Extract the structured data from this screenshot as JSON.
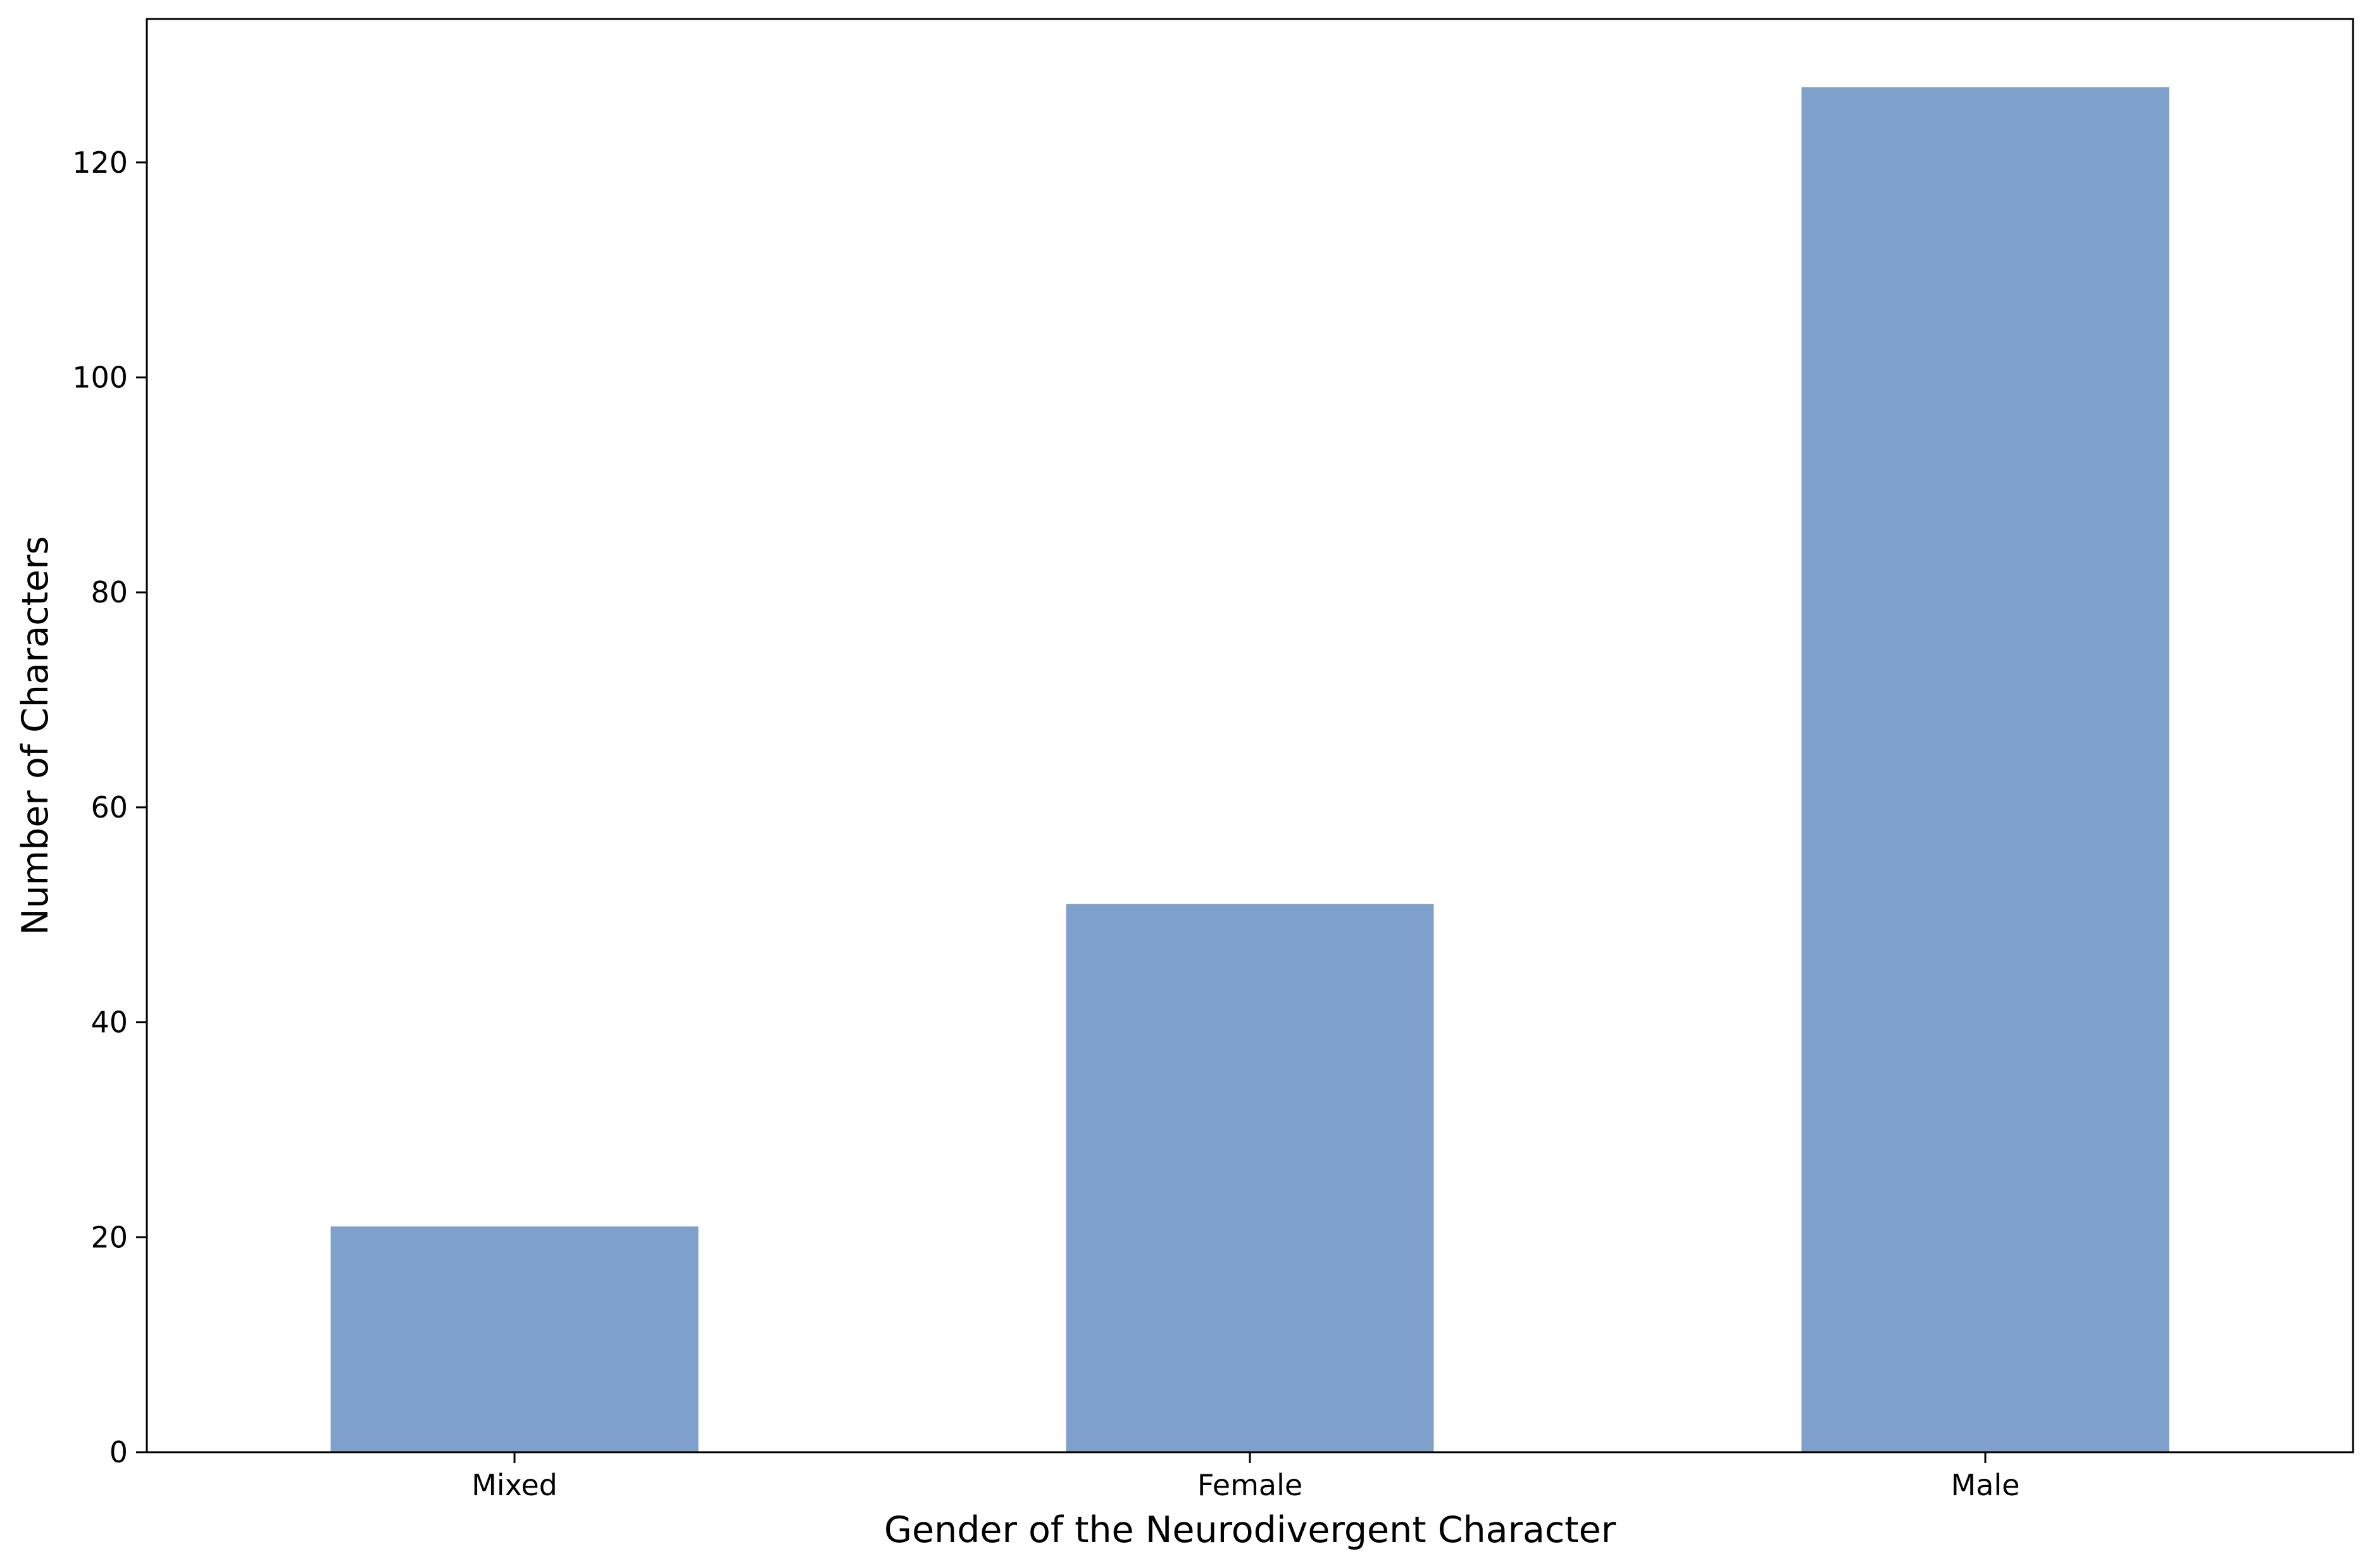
{
  "chart_data": {
    "type": "bar",
    "categories": [
      "Mixed",
      "Female",
      "Male"
    ],
    "values": [
      21,
      51,
      127
    ],
    "title": "",
    "xlabel": "Gender of the Neurodivergent Character",
    "ylabel": "Number of Characters",
    "ylim": [
      0,
      133.35
    ],
    "yticks": [
      0,
      20,
      40,
      60,
      80,
      100,
      120
    ],
    "grid": false,
    "legend": "none",
    "bar_color": "#7fa0ca"
  }
}
